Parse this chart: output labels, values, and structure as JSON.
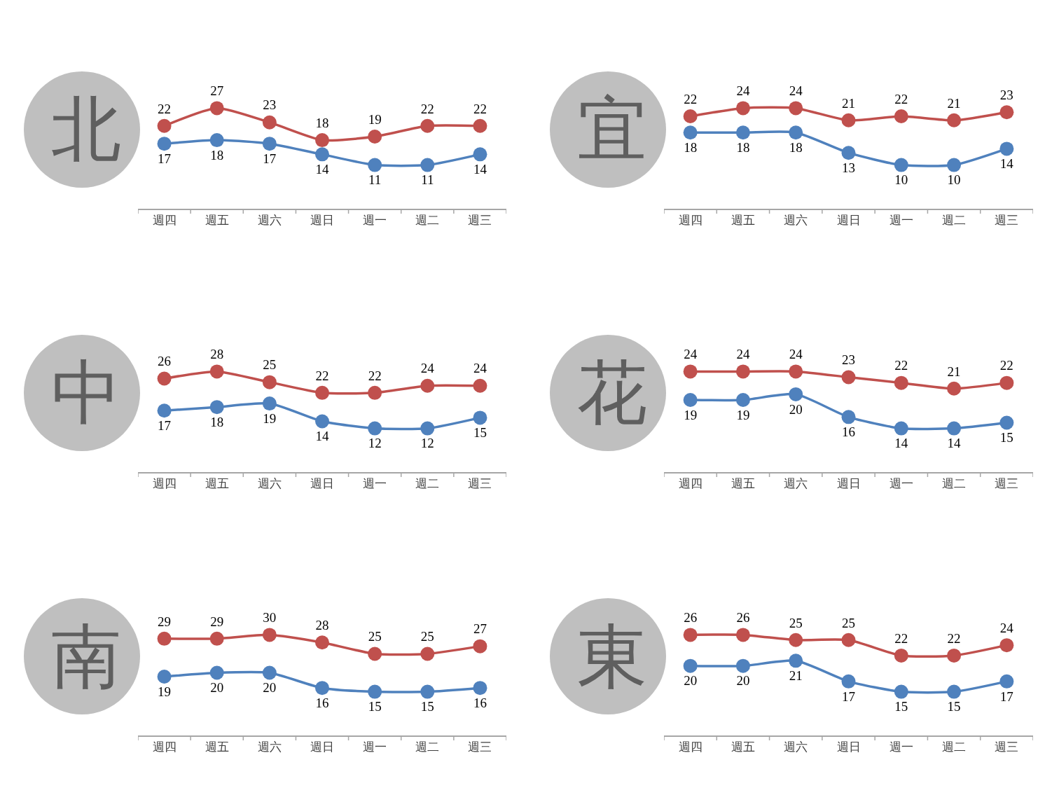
{
  "chart_data": [
    {
      "type": "line",
      "title": "北",
      "categories": [
        "週四",
        "週五",
        "週六",
        "週日",
        "週一",
        "週二",
        "週三"
      ],
      "tick_labels": "x",
      "marker": "circle",
      "data_labels": true,
      "grid": false,
      "series": [
        {
          "color": "#c0504d",
          "values": [
            22,
            27,
            23,
            18,
            19,
            22,
            22
          ]
        },
        {
          "color": "#4f81bd",
          "values": [
            17,
            18,
            17,
            14,
            11,
            11,
            14
          ]
        }
      ]
    },
    {
      "type": "line",
      "title": "宜",
      "categories": [
        "週四",
        "週五",
        "週六",
        "週日",
        "週一",
        "週二",
        "週三"
      ],
      "tick_labels": "x",
      "marker": "circle",
      "data_labels": true,
      "grid": false,
      "series": [
        {
          "color": "#c0504d",
          "values": [
            22,
            24,
            24,
            21,
            22,
            21,
            23
          ]
        },
        {
          "color": "#4f81bd",
          "values": [
            18,
            18,
            18,
            13,
            10,
            10,
            14
          ]
        }
      ]
    },
    {
      "type": "line",
      "title": "中",
      "categories": [
        "週四",
        "週五",
        "週六",
        "週日",
        "週一",
        "週二",
        "週三"
      ],
      "tick_labels": "x",
      "marker": "circle",
      "data_labels": true,
      "grid": false,
      "series": [
        {
          "color": "#c0504d",
          "values": [
            26,
            28,
            25,
            22,
            22,
            24,
            24
          ]
        },
        {
          "color": "#4f81bd",
          "values": [
            17,
            18,
            19,
            14,
            12,
            12,
            15
          ]
        }
      ]
    },
    {
      "type": "line",
      "title": "花",
      "categories": [
        "週四",
        "週五",
        "週六",
        "週日",
        "週一",
        "週二",
        "週三"
      ],
      "tick_labels": "x",
      "marker": "circle",
      "data_labels": true,
      "grid": false,
      "series": [
        {
          "color": "#c0504d",
          "values": [
            24,
            24,
            24,
            23,
            22,
            21,
            22
          ]
        },
        {
          "color": "#4f81bd",
          "values": [
            19,
            19,
            20,
            16,
            14,
            14,
            15
          ]
        }
      ]
    },
    {
      "type": "line",
      "title": "南",
      "categories": [
        "週四",
        "週五",
        "週六",
        "週日",
        "週一",
        "週二",
        "週三"
      ],
      "tick_labels": "x",
      "marker": "circle",
      "data_labels": true,
      "grid": false,
      "series": [
        {
          "color": "#c0504d",
          "values": [
            29,
            29,
            30,
            28,
            25,
            25,
            27
          ]
        },
        {
          "color": "#4f81bd",
          "values": [
            19,
            20,
            20,
            16,
            15,
            15,
            16
          ]
        }
      ]
    },
    {
      "type": "line",
      "title": "東",
      "categories": [
        "週四",
        "週五",
        "週六",
        "週日",
        "週一",
        "週二",
        "週三"
      ],
      "tick_labels": "x",
      "marker": "circle",
      "data_labels": true,
      "grid": false,
      "series": [
        {
          "color": "#c0504d",
          "values": [
            26,
            26,
            25,
            25,
            22,
            22,
            24
          ]
        },
        {
          "color": "#4f81bd",
          "values": [
            20,
            20,
            21,
            17,
            15,
            15,
            17
          ]
        }
      ]
    }
  ]
}
